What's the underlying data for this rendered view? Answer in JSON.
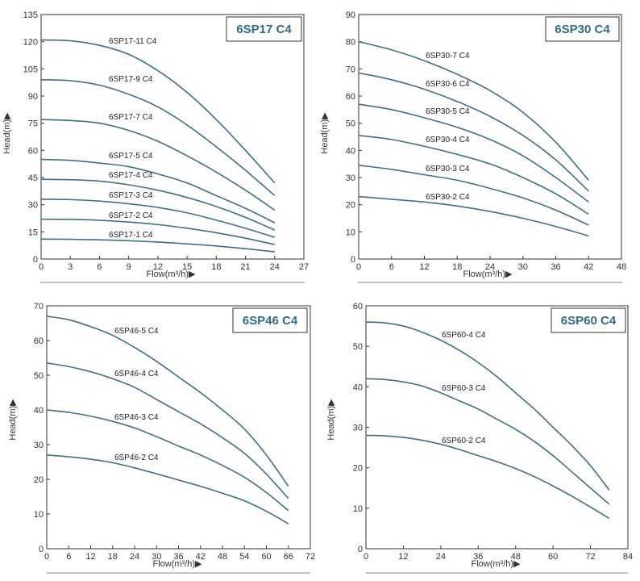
{
  "chart_data": [
    {
      "type": "line",
      "title": "6SP17 C4",
      "xlabel": "Flow(m³/h)▶",
      "ylabel": "Head(m)▶",
      "xlim": [
        0,
        27
      ],
      "ylim": [
        0,
        135
      ],
      "xticks": [
        0,
        3,
        6,
        9,
        12,
        15,
        18,
        21,
        24,
        27
      ],
      "yticks": [
        0,
        15,
        30,
        45,
        60,
        75,
        90,
        105,
        120,
        135
      ],
      "grid": false,
      "series": [
        {
          "name": "6SP17-11 C4",
          "x": [
            0,
            3,
            6,
            9,
            12,
            15,
            18,
            21,
            24
          ],
          "y": [
            121,
            120.5,
            118,
            113,
            104,
            92,
            77,
            60,
            42
          ]
        },
        {
          "name": "6SP17-9 C4",
          "x": [
            0,
            3,
            6,
            9,
            12,
            15,
            18,
            21,
            24
          ],
          "y": [
            99,
            98.5,
            96,
            91,
            84,
            74,
            62,
            49,
            35
          ]
        },
        {
          "name": "6SP17-7 C4",
          "x": [
            0,
            3,
            6,
            9,
            12,
            15,
            18,
            21,
            24
          ],
          "y": [
            77,
            76.5,
            75,
            71,
            65,
            57,
            48,
            38,
            27
          ]
        },
        {
          "name": "6SP17-5 C4",
          "x": [
            0,
            3,
            6,
            9,
            12,
            15,
            18,
            21,
            24
          ],
          "y": [
            55,
            54.5,
            53,
            51,
            47,
            42,
            35,
            28,
            20
          ]
        },
        {
          "name": "6SP17-4 C4",
          "x": [
            0,
            3,
            6,
            9,
            12,
            15,
            18,
            21,
            24
          ],
          "y": [
            44,
            43.8,
            43,
            41,
            38,
            34,
            29,
            23,
            16
          ]
        },
        {
          "name": "6SP17-3 C4",
          "x": [
            0,
            3,
            6,
            9,
            12,
            15,
            18,
            21,
            24
          ],
          "y": [
            33,
            32.8,
            32,
            30.5,
            28.5,
            25.5,
            21.5,
            17,
            12
          ]
        },
        {
          "name": "6SP17-2 C4",
          "x": [
            0,
            3,
            6,
            9,
            12,
            15,
            18,
            21,
            24
          ],
          "y": [
            22,
            21.9,
            21.4,
            20.4,
            19,
            17,
            14.5,
            11.5,
            8
          ]
        },
        {
          "name": "6SP17-1 C4",
          "x": [
            0,
            3,
            6,
            9,
            12,
            15,
            18,
            21,
            24
          ],
          "y": [
            11,
            10.9,
            10.6,
            10.1,
            9.4,
            8.4,
            7.2,
            5.7,
            4
          ]
        }
      ]
    },
    {
      "type": "line",
      "title": "6SP30 C4",
      "xlabel": "Flow(m³/h)▶",
      "ylabel": "Head(m)▶",
      "xlim": [
        0,
        48
      ],
      "ylim": [
        0,
        90
      ],
      "xticks": [
        0,
        6,
        12,
        18,
        24,
        30,
        36,
        42,
        48
      ],
      "yticks": [
        0,
        10,
        20,
        30,
        40,
        50,
        60,
        70,
        80,
        90
      ],
      "grid": false,
      "series": [
        {
          "name": "6SP30-7 C4",
          "x": [
            0,
            6,
            12,
            18,
            24,
            30,
            36,
            42
          ],
          "y": [
            80,
            77,
            73,
            68,
            62,
            54,
            43,
            29
          ]
        },
        {
          "name": "6SP30-6 C4",
          "x": [
            0,
            6,
            12,
            18,
            24,
            30,
            36,
            42
          ],
          "y": [
            68.5,
            66,
            62.5,
            58,
            52.5,
            45.5,
            36.5,
            25
          ]
        },
        {
          "name": "6SP30-5 C4",
          "x": [
            0,
            6,
            12,
            18,
            24,
            30,
            36,
            42
          ],
          "y": [
            57,
            55,
            52,
            48.5,
            44,
            38,
            30,
            21
          ]
        },
        {
          "name": "6SP30-4 C4",
          "x": [
            0,
            6,
            12,
            18,
            24,
            30,
            36,
            42
          ],
          "y": [
            45.5,
            44,
            41.5,
            38.5,
            35,
            30,
            24,
            16.5
          ]
        },
        {
          "name": "6SP30-3 C4",
          "x": [
            0,
            6,
            12,
            18,
            24,
            30,
            36,
            42
          ],
          "y": [
            34.5,
            33,
            31,
            29,
            26,
            22.5,
            18,
            12.5
          ]
        },
        {
          "name": "6SP30-2 C4",
          "x": [
            0,
            6,
            12,
            18,
            24,
            30,
            36,
            42
          ],
          "y": [
            23,
            22,
            21,
            19.5,
            17.5,
            15,
            12,
            8.5
          ]
        }
      ]
    },
    {
      "type": "line",
      "title": "6SP46 C4",
      "xlabel": "Flow(m³/h)▶",
      "ylabel": "Head(m)▶",
      "xlim": [
        0,
        72
      ],
      "ylim": [
        0,
        70
      ],
      "xticks": [
        0,
        6,
        12,
        18,
        24,
        30,
        36,
        42,
        48,
        54,
        60,
        66,
        72
      ],
      "yticks": [
        0,
        10,
        20,
        30,
        40,
        50,
        60,
        70
      ],
      "grid": false,
      "series": [
        {
          "name": "6SP46-5 C4",
          "x": [
            0,
            6,
            12,
            18,
            24,
            30,
            36,
            42,
            48,
            54,
            60,
            66
          ],
          "y": [
            67,
            66,
            64,
            61.5,
            58,
            54,
            49.5,
            45,
            40,
            34.5,
            27,
            18
          ]
        },
        {
          "name": "6SP46-4 C4",
          "x": [
            0,
            6,
            12,
            18,
            24,
            30,
            36,
            42,
            48,
            54,
            60,
            66
          ],
          "y": [
            53.5,
            52.5,
            51,
            49,
            46.5,
            43,
            39.5,
            36,
            32,
            27.5,
            21.5,
            14.5
          ]
        },
        {
          "name": "6SP46-3 C4",
          "x": [
            0,
            6,
            12,
            18,
            24,
            30,
            36,
            42,
            48,
            54,
            60,
            66
          ],
          "y": [
            40,
            39.3,
            38.2,
            36.7,
            34.8,
            32.3,
            29.6,
            27,
            24,
            20.6,
            16.2,
            11
          ]
        },
        {
          "name": "6SP46-2 C4",
          "x": [
            0,
            6,
            12,
            18,
            24,
            30,
            36,
            42,
            48,
            54,
            60,
            66
          ],
          "y": [
            27,
            26.5,
            25.8,
            24.8,
            23.3,
            21.6,
            19.8,
            18,
            16,
            13.8,
            10.8,
            7.2
          ]
        }
      ]
    },
    {
      "type": "line",
      "title": "6SP60 C4",
      "xlabel": "Flow(m³/h)▶",
      "ylabel": "Head(m)▶",
      "xlim": [
        0,
        84
      ],
      "ylim": [
        0,
        60
      ],
      "xticks": [
        0,
        12,
        24,
        36,
        48,
        60,
        72,
        84
      ],
      "yticks": [
        0,
        10,
        20,
        30,
        40,
        50,
        60
      ],
      "grid": false,
      "series": [
        {
          "name": "6SP60-4 C4",
          "x": [
            0,
            6,
            12,
            18,
            24,
            30,
            36,
            42,
            48,
            54,
            60,
            66,
            72,
            78
          ],
          "y": [
            56,
            55.8,
            55,
            53.5,
            51.5,
            49,
            46,
            42.5,
            38.5,
            34.5,
            30,
            25.5,
            20.5,
            14.5
          ]
        },
        {
          "name": "6SP60-3 C4",
          "x": [
            0,
            6,
            12,
            18,
            24,
            30,
            36,
            42,
            48,
            54,
            60,
            66,
            72,
            78
          ],
          "y": [
            42,
            41.8,
            41.2,
            40.2,
            38.5,
            36.5,
            34.5,
            32,
            29.5,
            26.5,
            23,
            19,
            15,
            11
          ]
        },
        {
          "name": "6SP60-2 C4",
          "x": [
            0,
            6,
            12,
            18,
            24,
            30,
            36,
            42,
            48,
            54,
            60,
            66,
            72,
            78
          ],
          "y": [
            28,
            27.9,
            27.5,
            26.8,
            25.8,
            24.5,
            23,
            21.5,
            19.8,
            17.8,
            15.5,
            13,
            10.3,
            7.5
          ]
        }
      ]
    }
  ],
  "style": {
    "curve_color": "#3d6f8a",
    "title_color": "#2f6b86",
    "axis_color": "#333333",
    "rule_color": "#888888"
  }
}
